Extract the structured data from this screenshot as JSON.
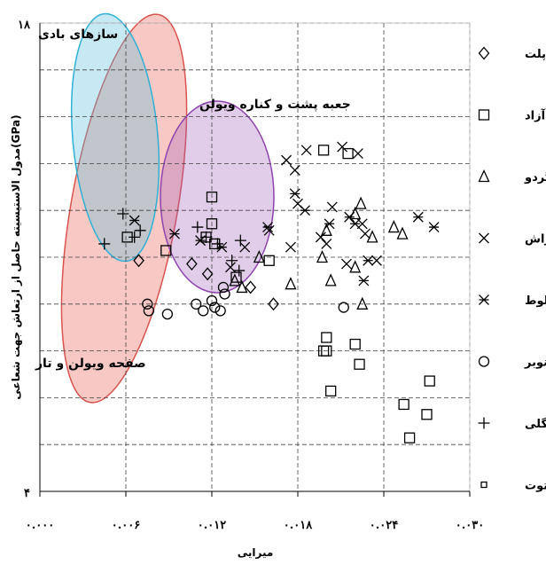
{
  "chart_data": {
    "type": "scatter",
    "xlabel": "میرایی",
    "ylabel": "مدول الاستیسیته حاصل از ارتعاش جهت شعاعی(GPa)",
    "xlim": [
      0.0,
      0.03
    ],
    "ylim": [
      4,
      18
    ],
    "x_ticks": [
      0.0,
      0.006,
      0.012,
      0.018,
      0.024,
      0.03
    ],
    "x_tick_labels": [
      "۰.۰۰۰",
      "۰.۰۰۶",
      "۰.۰۱۲",
      "۰.۰۱۸",
      "۰.۰۲۴",
      "۰.۰۳۰"
    ],
    "y_tick_labels": [
      {
        "value": 18,
        "label": "۱۸"
      },
      {
        "value": 4,
        "label": "۴"
      }
    ],
    "gridlines_y": [
      4,
      5.4,
      6.8,
      8.2,
      9.6,
      11,
      12.4,
      13.8,
      15.2,
      16.6,
      18
    ],
    "legend_position": "right",
    "series": [
      {
        "name": "افرا پلت",
        "marker": "diamond",
        "color": "#000000",
        "points": [
          [
            0.0069,
            10.9
          ],
          [
            0.0106,
            10.8
          ],
          [
            0.0117,
            10.5
          ],
          [
            0.0147,
            10.1
          ],
          [
            0.0163,
            9.6
          ]
        ]
      },
      {
        "name": "آزاد",
        "marker": "square",
        "color": "#000000",
        "points": [
          [
            0.0061,
            11.6
          ],
          [
            0.0088,
            11.2
          ],
          [
            0.0116,
            11.6
          ],
          [
            0.012,
            12.0
          ],
          [
            0.0122,
            11.4
          ],
          [
            0.0137,
            10.4
          ],
          [
            0.016,
            10.9
          ],
          [
            0.0198,
            14.2
          ],
          [
            0.0215,
            14.1
          ],
          [
            0.012,
            12.8
          ],
          [
            0.0198,
            8.2
          ],
          [
            0.02,
            8.6
          ],
          [
            0.022,
            8.4
          ],
          [
            0.0223,
            7.8
          ],
          [
            0.0203,
            7.0
          ],
          [
            0.02,
            8.2
          ],
          [
            0.0272,
            7.3
          ],
          [
            0.027,
            6.3
          ],
          [
            0.0258,
            5.6
          ],
          [
            0.0254,
            6.6
          ]
        ]
      },
      {
        "name": "گردو",
        "marker": "triangle",
        "color": "#000000",
        "points": [
          [
            0.0136,
            10.3
          ],
          [
            0.0141,
            10.1
          ],
          [
            0.0153,
            11.0
          ],
          [
            0.0175,
            10.2
          ],
          [
            0.0197,
            11.0
          ],
          [
            0.0203,
            10.3
          ],
          [
            0.022,
            10.7
          ],
          [
            0.0224,
            12.6
          ],
          [
            0.0232,
            11.6
          ],
          [
            0.0247,
            11.9
          ],
          [
            0.0253,
            11.7
          ],
          [
            0.02,
            11.8
          ],
          [
            0.022,
            12.3
          ],
          [
            0.0225,
            9.6
          ]
        ]
      },
      {
        "name": "راش",
        "marker": "x",
        "color": "#000000",
        "points": [
          [
            0.0172,
            13.9
          ],
          [
            0.0178,
            13.6
          ],
          [
            0.0186,
            14.2
          ],
          [
            0.0211,
            14.3
          ],
          [
            0.0222,
            14.1
          ],
          [
            0.0204,
            12.5
          ],
          [
            0.018,
            12.6
          ],
          [
            0.0196,
            11.6
          ],
          [
            0.0225,
            12.0
          ],
          [
            0.0227,
            11.7
          ],
          [
            0.0235,
            10.9
          ],
          [
            0.0214,
            10.8
          ],
          [
            0.02,
            11.4
          ],
          [
            0.016,
            11.8
          ],
          [
            0.0175,
            11.3
          ],
          [
            0.0143,
            11.3
          ],
          [
            0.0133,
            10.7
          ]
        ]
      },
      {
        "name": "بلوط",
        "marker": "asterisk",
        "color": "#000000",
        "points": [
          [
            0.0066,
            12.1
          ],
          [
            0.0094,
            11.7
          ],
          [
            0.0112,
            11.5
          ],
          [
            0.0127,
            11.3
          ],
          [
            0.0159,
            11.9
          ],
          [
            0.0178,
            12.9
          ],
          [
            0.0185,
            12.4
          ],
          [
            0.0216,
            12.2
          ],
          [
            0.0264,
            12.2
          ],
          [
            0.0275,
            11.9
          ],
          [
            0.0229,
            10.9
          ],
          [
            0.0226,
            10.3
          ],
          [
            0.0202,
            12.0
          ],
          [
            0.022,
            12.0
          ]
        ]
      },
      {
        "name": "صنوبر",
        "marker": "circle",
        "color": "#000000",
        "points": [
          [
            0.0075,
            9.6
          ],
          [
            0.0076,
            9.4
          ],
          [
            0.0089,
            9.3
          ],
          [
            0.0109,
            9.6
          ],
          [
            0.0114,
            9.4
          ],
          [
            0.0122,
            9.5
          ],
          [
            0.012,
            9.7
          ],
          [
            0.0126,
            9.4
          ],
          [
            0.0128,
            10.1
          ],
          [
            0.0129,
            9.9
          ],
          [
            0.0212,
            9.5
          ]
        ]
      },
      {
        "name": "کاج جنگلی",
        "marker": "plus",
        "color": "#000000",
        "points": [
          [
            0.0045,
            11.4
          ],
          [
            0.0058,
            12.3
          ],
          [
            0.0066,
            11.6
          ],
          [
            0.007,
            11.8
          ],
          [
            0.011,
            11.9
          ],
          [
            0.0116,
            11.6
          ],
          [
            0.0124,
            11.4
          ],
          [
            0.014,
            11.5
          ],
          [
            0.0139,
            10.6
          ],
          [
            0.0134,
            10.9
          ]
        ]
      },
      {
        "name": "توت",
        "marker": "small-square",
        "color": "#000000",
        "points": []
      }
    ],
    "regions": [
      {
        "label": "سازهای بادی",
        "color": "#5bc0de"
      },
      {
        "label": "جعبه پشت و کناره ویولن",
        "color": "#9b59b6"
      },
      {
        "label": "صفحه ویولن و تار",
        "color": "#e74c3c"
      }
    ]
  }
}
